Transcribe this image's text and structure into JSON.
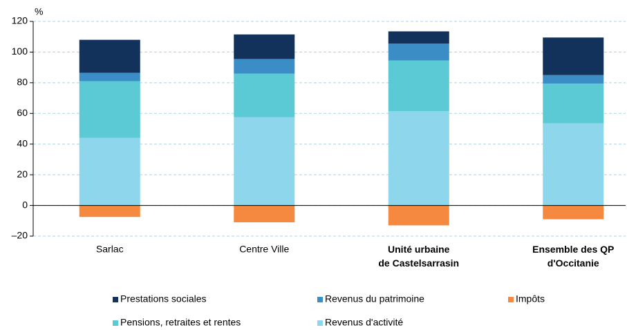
{
  "chart_data": {
    "type": "stacked_bar",
    "y_label": "%",
    "categories": [
      "Sarlac",
      "Centre Ville",
      "Unité urbaine\nde Castelsarrasin",
      "Ensemble des QP\nd'Occitanie"
    ],
    "category_bold": [
      false,
      false,
      true,
      true
    ],
    "series": [
      {
        "name": "Prestations sociales",
        "color": "#13325b",
        "values": [
          21.5,
          16,
          8,
          24.5
        ]
      },
      {
        "name": "Revenus du patrimoine",
        "color": "#3a8dc5",
        "values": [
          5.5,
          9.5,
          11,
          5.5
        ]
      },
      {
        "name": "Impôts",
        "color": "#f5893f",
        "values": [
          -7.5,
          -11,
          -13,
          -9
        ]
      },
      {
        "name": "Pensions, retraites et rentes",
        "color": "#5ccad5",
        "values": [
          37,
          28.5,
          33,
          26
        ]
      },
      {
        "name": "Revenus d'activité",
        "color": "#8dd6ec",
        "values": [
          44,
          57.5,
          61.5,
          53.5
        ]
      }
    ],
    "ylim": [
      -20,
      120
    ],
    "yticks": [
      {
        "value": -20,
        "label": "–20"
      },
      0,
      20,
      40,
      60,
      80,
      100,
      120
    ],
    "grid": true
  }
}
